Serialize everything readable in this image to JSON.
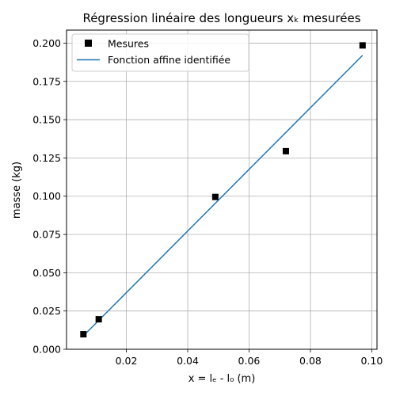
{
  "chart_data": {
    "type": "scatter",
    "title": "Régression linéaire des longueurs xₖ mesurées",
    "xlabel": "x = lₑ - l₀ (m)",
    "ylabel": "masse (kg)",
    "xlim": [
      0.0005,
      0.1017
    ],
    "ylim": [
      0.0,
      0.2085
    ],
    "grid": true,
    "legend_position": "top-left",
    "x_ticks": [
      0.02,
      0.04,
      0.06,
      0.08,
      0.1
    ],
    "x_tick_labels": [
      "0.02",
      "0.04",
      "0.06",
      "0.08",
      "0.10"
    ],
    "y_ticks": [
      0.0,
      0.025,
      0.05,
      0.075,
      0.1,
      0.125,
      0.15,
      0.175,
      0.2
    ],
    "y_tick_labels": [
      "0.000",
      "0.025",
      "0.050",
      "0.075",
      "0.100",
      "0.125",
      "0.150",
      "0.175",
      "0.200"
    ],
    "series": [
      {
        "name": "Mesures",
        "kind": "scatter",
        "marker": "square",
        "color": "#000000",
        "x": [
          0.006,
          0.011,
          0.049,
          0.072,
          0.097
        ],
        "y": [
          0.0098,
          0.0196,
          0.0995,
          0.1294,
          0.1985
        ]
      },
      {
        "name": "Fonction affine identifiée",
        "kind": "line",
        "color": "#1f77b4",
        "x": [
          0.006,
          0.097
        ],
        "y": [
          0.0088,
          0.192
        ]
      }
    ]
  }
}
